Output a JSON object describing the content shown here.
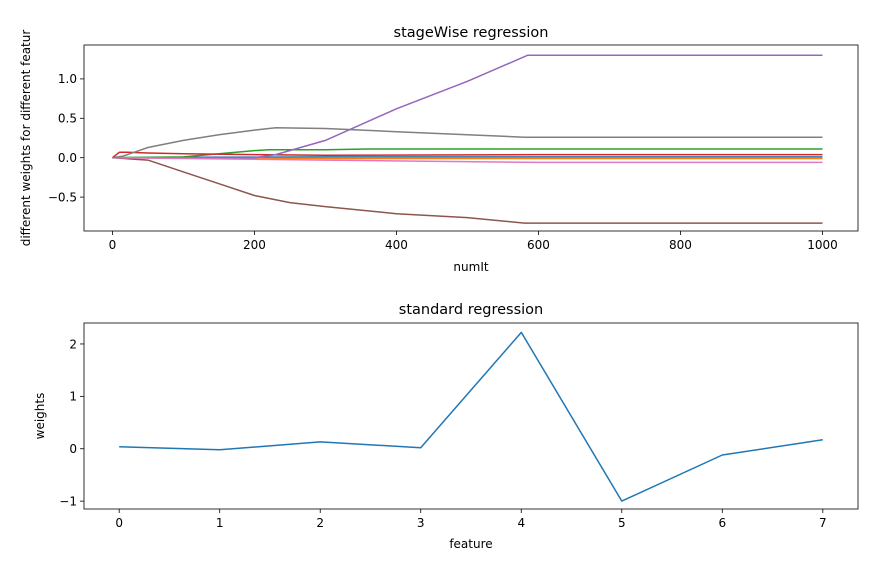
{
  "chart_data": [
    {
      "type": "line",
      "title": "stageWise regression",
      "xlabel": "numIt",
      "ylabel": "different weights for different featur",
      "xlim": [
        -40,
        1050
      ],
      "ylim": [
        -0.93,
        1.43
      ],
      "xticks": [
        0,
        200,
        400,
        600,
        800,
        1000
      ],
      "xtick_labels": [
        "0",
        "200",
        "400",
        "600",
        "800",
        "1000"
      ],
      "yticks": [
        -0.5,
        0.0,
        0.5,
        1.0
      ],
      "ytick_labels": [
        "−0.5",
        "0.0",
        "0.5",
        "1.0"
      ],
      "grid": false,
      "series": [
        {
          "color": "#1f77b4",
          "x": [
            0,
            100,
            300,
            600,
            1000
          ],
          "y": [
            0,
            0.005,
            0.01,
            0.01,
            0.01
          ]
        },
        {
          "color": "#ff7f0e",
          "x": [
            0,
            100,
            350,
            600,
            1000
          ],
          "y": [
            0,
            -0.005,
            -0.01,
            -0.01,
            -0.01
          ]
        },
        {
          "color": "#2ca02c",
          "x": [
            0,
            100,
            150,
            200,
            220,
            300,
            360,
            500,
            600,
            1000
          ],
          "y": [
            0,
            0.01,
            0.05,
            0.09,
            0.1,
            0.1,
            0.11,
            0.11,
            0.11,
            0.11
          ]
        },
        {
          "color": "#d62728",
          "x": [
            0,
            10,
            20,
            50,
            100,
            200,
            300,
            600,
            1000
          ],
          "y": [
            0,
            0.07,
            0.07,
            0.06,
            0.05,
            0.04,
            0.03,
            0.04,
            0.04
          ]
        },
        {
          "color": "#9467bd",
          "x": [
            0,
            200,
            230,
            300,
            400,
            500,
            585,
            1000
          ],
          "y": [
            0,
            0,
            0.04,
            0.22,
            0.62,
            0.97,
            1.3,
            1.3
          ]
        },
        {
          "color": "#8c564b",
          "x": [
            0,
            50,
            100,
            150,
            200,
            250,
            300,
            400,
            500,
            580,
            1000
          ],
          "y": [
            0,
            -0.03,
            -0.18,
            -0.33,
            -0.48,
            -0.57,
            -0.62,
            -0.71,
            -0.76,
            -0.83,
            -0.83
          ]
        },
        {
          "color": "#e377c2",
          "x": [
            0,
            100,
            300,
            600,
            1000
          ],
          "y": [
            0,
            -0.01,
            -0.03,
            -0.06,
            -0.06
          ]
        },
        {
          "color": "#7f7f7f",
          "x": [
            0,
            15,
            50,
            100,
            150,
            200,
            230,
            300,
            400,
            500,
            580,
            1000
          ],
          "y": [
            0,
            0.02,
            0.13,
            0.22,
            0.29,
            0.35,
            0.38,
            0.37,
            0.33,
            0.29,
            0.26,
            0.26
          ]
        }
      ]
    },
    {
      "type": "line",
      "title": "standard regression",
      "xlabel": "feature",
      "ylabel": "weights",
      "xlim": [
        -0.35,
        7.35
      ],
      "ylim": [
        -1.15,
        2.4
      ],
      "xticks": [
        0,
        1,
        2,
        3,
        4,
        5,
        6,
        7
      ],
      "xtick_labels": [
        "0",
        "1",
        "2",
        "3",
        "4",
        "5",
        "6",
        "7"
      ],
      "yticks": [
        -1,
        0,
        1,
        2
      ],
      "ytick_labels": [
        "−1",
        "0",
        "1",
        "2"
      ],
      "grid": false,
      "series": [
        {
          "color": "#1f77b4",
          "x": [
            0,
            1,
            2,
            3,
            4,
            5,
            6,
            7
          ],
          "y": [
            0.04,
            -0.02,
            0.13,
            0.02,
            2.22,
            -1.0,
            -0.12,
            0.17
          ]
        }
      ]
    }
  ]
}
